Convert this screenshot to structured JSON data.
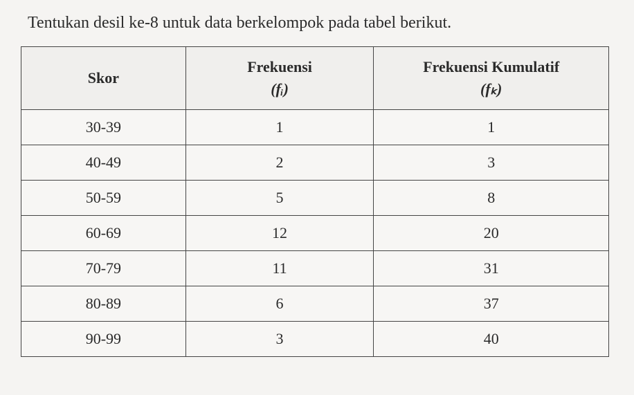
{
  "title": "Tentukan desil ke-8 untuk data berkelompok pada tabel berikut.",
  "table": {
    "type": "table",
    "background_color": "#f7f6f4",
    "border_color": "#444444",
    "header_bg": "#f0efed",
    "font_family": "Georgia, serif",
    "title_fontsize": 24,
    "cell_fontsize": 22,
    "columns": [
      {
        "label": "Skor",
        "sublabel": "",
        "width": "28%"
      },
      {
        "label": "Frekuensi",
        "sublabel": "(fᵢ)",
        "width": "32%"
      },
      {
        "label": "Frekuensi Kumulatif",
        "sublabel": "(fₖ)",
        "width": "40%"
      }
    ],
    "rows": [
      {
        "skor": "30-39",
        "freq": "1",
        "cumfreq": "1"
      },
      {
        "skor": "40-49",
        "freq": "2",
        "cumfreq": "3"
      },
      {
        "skor": "50-59",
        "freq": "5",
        "cumfreq": "8"
      },
      {
        "skor": "60-69",
        "freq": "12",
        "cumfreq": "20"
      },
      {
        "skor": "70-79",
        "freq": "11",
        "cumfreq": "31"
      },
      {
        "skor": "80-89",
        "freq": "6",
        "cumfreq": "37"
      },
      {
        "skor": "90-99",
        "freq": "3",
        "cumfreq": "40"
      }
    ]
  }
}
